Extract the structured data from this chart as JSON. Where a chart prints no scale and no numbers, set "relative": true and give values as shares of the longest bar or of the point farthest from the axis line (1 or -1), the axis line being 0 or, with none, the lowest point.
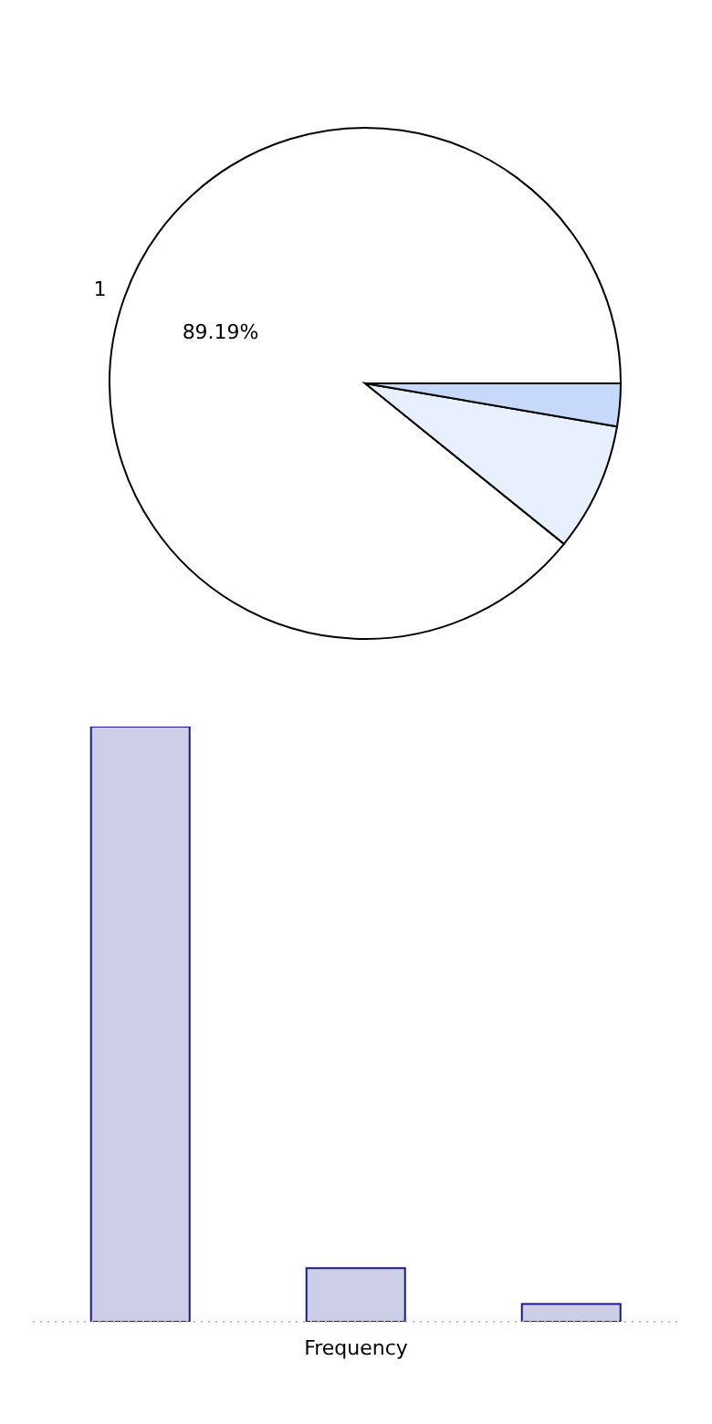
{
  "chart_data": [
    {
      "type": "pie",
      "categories": [
        "1",
        null,
        null
      ],
      "values": [
        89.19,
        8.11,
        2.7
      ],
      "colors": [
        "#ffffff",
        "#e9f0fd",
        "#c6d9fb"
      ],
      "value_labels": [
        "89.19%",
        null,
        null
      ],
      "legend": false
    },
    {
      "type": "bar",
      "categories": [
        null,
        null,
        null
      ],
      "values": [
        1,
        0.09,
        0.03
      ],
      "color": "#cccfe6",
      "relative": true,
      "xlabel": "Frequency",
      "legend": false
    }
  ]
}
